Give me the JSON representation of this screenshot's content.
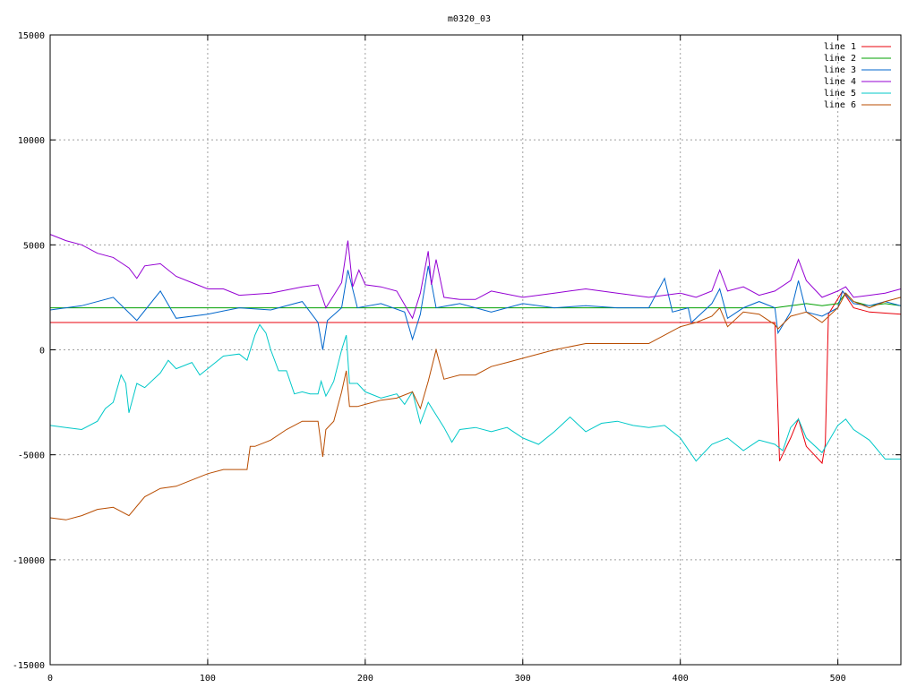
{
  "chart_data": {
    "type": "line",
    "title": "m0320_03",
    "xlabel": "",
    "ylabel": "",
    "xlim": [
      0,
      540
    ],
    "ylim": [
      -15000,
      15000
    ],
    "x_ticks": [
      0,
      100,
      200,
      300,
      400,
      500
    ],
    "y_ticks": [
      -15000,
      -10000,
      -5000,
      0,
      5000,
      10000,
      15000
    ],
    "grid": true,
    "legend_position": "top-right",
    "series": [
      {
        "name": "line 1",
        "color": "#e8000b",
        "points": [
          [
            0,
            1300
          ],
          [
            460,
            1300
          ],
          [
            462,
            -3000
          ],
          [
            463,
            -5300
          ],
          [
            470,
            -4200
          ],
          [
            475,
            -3300
          ],
          [
            480,
            -4600
          ],
          [
            490,
            -5400
          ],
          [
            492,
            -4500
          ],
          [
            494,
            1700
          ],
          [
            503,
            2800
          ],
          [
            510,
            2000
          ],
          [
            520,
            1800
          ],
          [
            540,
            1700
          ]
        ]
      },
      {
        "name": "line 2",
        "color": "#00a000",
        "points": [
          [
            0,
            2000
          ],
          [
            440,
            2000
          ],
          [
            460,
            2000
          ],
          [
            470,
            2100
          ],
          [
            480,
            2200
          ],
          [
            490,
            2100
          ],
          [
            500,
            2200
          ],
          [
            505,
            2700
          ],
          [
            510,
            2300
          ],
          [
            520,
            2100
          ],
          [
            530,
            2200
          ],
          [
            540,
            2100
          ]
        ]
      },
      {
        "name": "line 3",
        "color": "#0066cc",
        "points": [
          [
            0,
            1900
          ],
          [
            20,
            2100
          ],
          [
            40,
            2500
          ],
          [
            55,
            1400
          ],
          [
            70,
            2800
          ],
          [
            80,
            1500
          ],
          [
            100,
            1700
          ],
          [
            120,
            2000
          ],
          [
            140,
            1900
          ],
          [
            160,
            2300
          ],
          [
            170,
            1300
          ],
          [
            173,
            0
          ],
          [
            176,
            1400
          ],
          [
            185,
            2000
          ],
          [
            189,
            3800
          ],
          [
            195,
            2000
          ],
          [
            210,
            2200
          ],
          [
            225,
            1800
          ],
          [
            230,
            500
          ],
          [
            235,
            1700
          ],
          [
            240,
            4000
          ],
          [
            245,
            2000
          ],
          [
            260,
            2200
          ],
          [
            280,
            1800
          ],
          [
            300,
            2200
          ],
          [
            320,
            2000
          ],
          [
            340,
            2100
          ],
          [
            360,
            2000
          ],
          [
            380,
            2000
          ],
          [
            390,
            3400
          ],
          [
            395,
            1800
          ],
          [
            405,
            2000
          ],
          [
            407,
            1300
          ],
          [
            410,
            1500
          ],
          [
            420,
            2200
          ],
          [
            425,
            2900
          ],
          [
            430,
            1500
          ],
          [
            440,
            2000
          ],
          [
            450,
            2300
          ],
          [
            460,
            2000
          ],
          [
            462,
            800
          ],
          [
            470,
            1800
          ],
          [
            475,
            3300
          ],
          [
            480,
            1800
          ],
          [
            490,
            1600
          ],
          [
            500,
            2000
          ],
          [
            503,
            2800
          ],
          [
            510,
            2200
          ],
          [
            520,
            2100
          ],
          [
            530,
            2300
          ],
          [
            540,
            2100
          ]
        ]
      },
      {
        "name": "line 4",
        "color": "#9400d3",
        "points": [
          [
            0,
            5500
          ],
          [
            10,
            5200
          ],
          [
            20,
            5000
          ],
          [
            30,
            4600
          ],
          [
            40,
            4400
          ],
          [
            50,
            3900
          ],
          [
            55,
            3400
          ],
          [
            60,
            4000
          ],
          [
            70,
            4100
          ],
          [
            80,
            3500
          ],
          [
            90,
            3200
          ],
          [
            100,
            2900
          ],
          [
            110,
            2900
          ],
          [
            120,
            2600
          ],
          [
            140,
            2700
          ],
          [
            160,
            3000
          ],
          [
            170,
            3100
          ],
          [
            175,
            2000
          ],
          [
            180,
            2600
          ],
          [
            185,
            3200
          ],
          [
            189,
            5200
          ],
          [
            192,
            3000
          ],
          [
            196,
            3800
          ],
          [
            200,
            3100
          ],
          [
            210,
            3000
          ],
          [
            220,
            2800
          ],
          [
            230,
            1500
          ],
          [
            235,
            2700
          ],
          [
            240,
            4700
          ],
          [
            242,
            3100
          ],
          [
            245,
            4300
          ],
          [
            250,
            2500
          ],
          [
            260,
            2400
          ],
          [
            270,
            2400
          ],
          [
            280,
            2800
          ],
          [
            300,
            2500
          ],
          [
            320,
            2700
          ],
          [
            340,
            2900
          ],
          [
            360,
            2700
          ],
          [
            380,
            2500
          ],
          [
            400,
            2700
          ],
          [
            410,
            2500
          ],
          [
            420,
            2800
          ],
          [
            425,
            3800
          ],
          [
            430,
            2800
          ],
          [
            440,
            3000
          ],
          [
            450,
            2600
          ],
          [
            460,
            2800
          ],
          [
            470,
            3300
          ],
          [
            475,
            4300
          ],
          [
            480,
            3300
          ],
          [
            490,
            2500
          ],
          [
            500,
            2800
          ],
          [
            505,
            3000
          ],
          [
            510,
            2500
          ],
          [
            520,
            2600
          ],
          [
            530,
            2700
          ],
          [
            540,
            2900
          ]
        ]
      },
      {
        "name": "line 5",
        "color": "#00c8c8",
        "points": [
          [
            0,
            -3600
          ],
          [
            10,
            -3700
          ],
          [
            20,
            -3800
          ],
          [
            30,
            -3400
          ],
          [
            35,
            -2800
          ],
          [
            40,
            -2500
          ],
          [
            45,
            -1200
          ],
          [
            48,
            -1600
          ],
          [
            50,
            -3000
          ],
          [
            55,
            -1600
          ],
          [
            60,
            -1800
          ],
          [
            70,
            -1100
          ],
          [
            75,
            -500
          ],
          [
            80,
            -900
          ],
          [
            90,
            -600
          ],
          [
            95,
            -1200
          ],
          [
            100,
            -900
          ],
          [
            110,
            -300
          ],
          [
            120,
            -200
          ],
          [
            125,
            -500
          ],
          [
            130,
            700
          ],
          [
            133,
            1200
          ],
          [
            137,
            800
          ],
          [
            140,
            0
          ],
          [
            145,
            -1000
          ],
          [
            150,
            -1000
          ],
          [
            155,
            -2100
          ],
          [
            160,
            -2000
          ],
          [
            165,
            -2100
          ],
          [
            170,
            -2100
          ],
          [
            172,
            -1500
          ],
          [
            175,
            -2200
          ],
          [
            178,
            -1800
          ],
          [
            180,
            -1500
          ],
          [
            185,
            0
          ],
          [
            188,
            700
          ],
          [
            190,
            -1600
          ],
          [
            195,
            -1600
          ],
          [
            200,
            -2000
          ],
          [
            210,
            -2300
          ],
          [
            220,
            -2100
          ],
          [
            225,
            -2600
          ],
          [
            230,
            -2000
          ],
          [
            235,
            -3500
          ],
          [
            240,
            -2500
          ],
          [
            250,
            -3700
          ],
          [
            255,
            -4400
          ],
          [
            260,
            -3800
          ],
          [
            270,
            -3700
          ],
          [
            280,
            -3900
          ],
          [
            290,
            -3700
          ],
          [
            300,
            -4200
          ],
          [
            310,
            -4500
          ],
          [
            320,
            -3900
          ],
          [
            330,
            -3200
          ],
          [
            340,
            -3900
          ],
          [
            350,
            -3500
          ],
          [
            360,
            -3400
          ],
          [
            370,
            -3600
          ],
          [
            380,
            -3700
          ],
          [
            390,
            -3600
          ],
          [
            400,
            -4200
          ],
          [
            410,
            -5300
          ],
          [
            420,
            -4500
          ],
          [
            430,
            -4200
          ],
          [
            440,
            -4800
          ],
          [
            450,
            -4300
          ],
          [
            460,
            -4500
          ],
          [
            465,
            -4800
          ],
          [
            470,
            -3700
          ],
          [
            475,
            -3300
          ],
          [
            480,
            -4200
          ],
          [
            490,
            -4900
          ],
          [
            500,
            -3600
          ],
          [
            505,
            -3300
          ],
          [
            510,
            -3800
          ],
          [
            520,
            -4300
          ],
          [
            530,
            -5200
          ],
          [
            540,
            -5200
          ]
        ]
      },
      {
        "name": "line 6",
        "color": "#b84c00",
        "points": [
          [
            0,
            -8000
          ],
          [
            10,
            -8100
          ],
          [
            20,
            -7900
          ],
          [
            30,
            -7600
          ],
          [
            40,
            -7500
          ],
          [
            50,
            -7900
          ],
          [
            60,
            -7000
          ],
          [
            70,
            -6600
          ],
          [
            80,
            -6500
          ],
          [
            90,
            -6200
          ],
          [
            100,
            -5900
          ],
          [
            110,
            -5700
          ],
          [
            125,
            -5700
          ],
          [
            127,
            -4600
          ],
          [
            130,
            -4600
          ],
          [
            140,
            -4300
          ],
          [
            150,
            -3800
          ],
          [
            160,
            -3400
          ],
          [
            170,
            -3400
          ],
          [
            173,
            -5100
          ],
          [
            175,
            -3800
          ],
          [
            180,
            -3400
          ],
          [
            185,
            -2000
          ],
          [
            188,
            -1000
          ],
          [
            190,
            -2700
          ],
          [
            195,
            -2700
          ],
          [
            200,
            -2600
          ],
          [
            210,
            -2400
          ],
          [
            220,
            -2300
          ],
          [
            230,
            -2000
          ],
          [
            235,
            -2800
          ],
          [
            240,
            -1500
          ],
          [
            245,
            0
          ],
          [
            250,
            -1400
          ],
          [
            260,
            -1200
          ],
          [
            270,
            -1200
          ],
          [
            280,
            -800
          ],
          [
            290,
            -600
          ],
          [
            300,
            -400
          ],
          [
            320,
            0
          ],
          [
            340,
            300
          ],
          [
            360,
            300
          ],
          [
            380,
            300
          ],
          [
            400,
            1100
          ],
          [
            410,
            1300
          ],
          [
            420,
            1600
          ],
          [
            425,
            2000
          ],
          [
            430,
            1100
          ],
          [
            440,
            1800
          ],
          [
            450,
            1700
          ],
          [
            460,
            1200
          ],
          [
            462,
            1000
          ],
          [
            470,
            1600
          ],
          [
            480,
            1800
          ],
          [
            490,
            1300
          ],
          [
            500,
            2000
          ],
          [
            505,
            2700
          ],
          [
            510,
            2300
          ],
          [
            520,
            2000
          ],
          [
            530,
            2300
          ],
          [
            540,
            2500
          ]
        ]
      }
    ]
  }
}
